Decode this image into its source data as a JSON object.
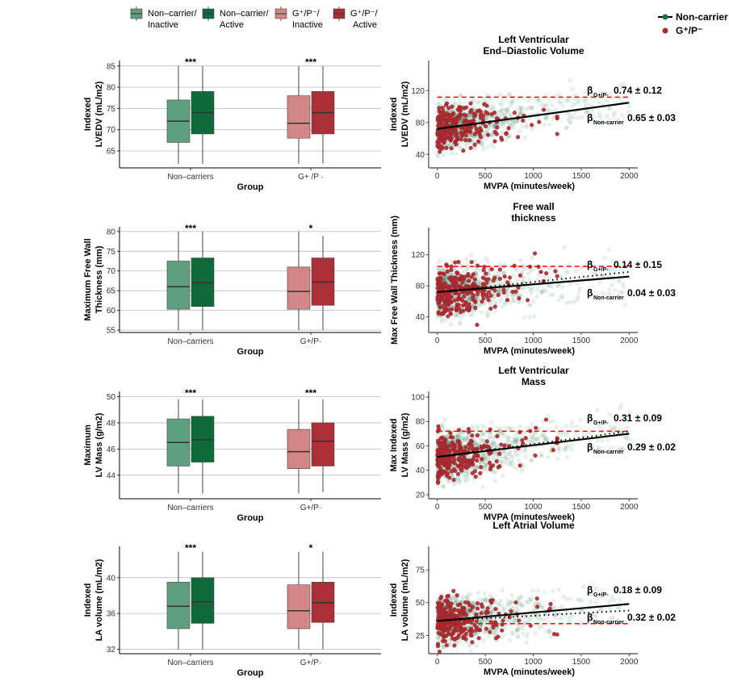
{
  "colors": {
    "nc_inactive": "#5f9e7e",
    "nc_active": "#0e6a3a",
    "g_inactive": "#d48585",
    "g_active": "#ac2f37",
    "scatter_green": "#1f6b42",
    "scatter_red": "#a7282f",
    "dashed": "#ff0000"
  },
  "legend_box": [
    {
      "label1": "Non–carrier/",
      "label2": "Inactive"
    },
    {
      "label1": "Non–carrier/",
      "label2": "Active"
    },
    {
      "label1": "G⁺/P⁻/",
      "label2": "Inactive"
    },
    {
      "label1": "G⁺/P⁻/",
      "label2": "Active"
    }
  ],
  "legend_scatter": [
    {
      "label": "Non-carrier"
    },
    {
      "label": "G⁺/P⁻"
    }
  ],
  "chart_data": [
    {
      "type": "box",
      "ylabel1": "Indexed",
      "ylabel2": "LVEDV (mL/m2)",
      "xlabel": "Group",
      "categories": [
        "Non–carriers",
        "G+ /P ·"
      ],
      "ylim": [
        61,
        86.3
      ],
      "yticks": [
        65,
        70,
        75,
        80,
        85
      ],
      "ytick_labels": [
        "65",
        "70",
        "75",
        "80",
        "85"
      ],
      "significance": [
        "***",
        "***"
      ],
      "boxes": [
        [
          62,
          67,
          72,
          77,
          85
        ],
        [
          62,
          69,
          74,
          79,
          85
        ],
        [
          62,
          68,
          71.5,
          78,
          85
        ],
        [
          62,
          69,
          74,
          79,
          85
        ]
      ]
    },
    {
      "type": "box",
      "ylabel1": "Maximum Free Wall",
      "ylabel2": "Thickness (mm)",
      "xlabel": "Group",
      "categories": [
        "Non–carriers",
        "G+/P·"
      ],
      "ylim": [
        54.4,
        81.2
      ],
      "yticks": [
        55,
        60,
        65,
        70,
        75,
        80
      ],
      "ytick_labels": [
        "55",
        "60",
        "65",
        "70",
        "75",
        "80"
      ],
      "significance": [
        "***",
        "*"
      ],
      "boxes": [
        [
          55,
          60.3,
          66,
          72.5,
          80
        ],
        [
          55,
          61,
          67,
          73.3,
          80
        ],
        [
          55,
          60.3,
          64.8,
          71,
          80
        ],
        [
          55,
          61.3,
          67.2,
          73.3,
          79
        ]
      ]
    },
    {
      "type": "box",
      "ylabel1": "Maximum",
      "ylabel2": "LV Mass (g/m2)",
      "xlabel": "Group",
      "categories": [
        "Non–carriers",
        "G+/P·"
      ],
      "ylim": [
        42.2,
        50.4
      ],
      "yticks": [
        44,
        46,
        48,
        50
      ],
      "ytick_labels": [
        "44",
        "46",
        "48",
        "50"
      ],
      "significance": [
        "***",
        "***"
      ],
      "boxes": [
        [
          42.6,
          44.7,
          46.5,
          48.3,
          49.8
        ],
        [
          42.6,
          45,
          46.7,
          48.5,
          49.8
        ],
        [
          42.6,
          44.5,
          45.8,
          47.5,
          49.8
        ],
        [
          42.7,
          44.7,
          46.6,
          48,
          49.8
        ]
      ]
    },
    {
      "type": "box",
      "ylabel1": "Indexed",
      "ylabel2": "LA volume (mL/m2)",
      "xlabel": "Group",
      "categories": [
        "Non–carriers",
        "G+/P·"
      ],
      "ylim": [
        31.5,
        43.5
      ],
      "yticks": [
        32,
        36,
        40
      ],
      "ytick_labels": [
        "32",
        "36",
        "40"
      ],
      "significance": [
        "***",
        "*"
      ],
      "boxes": [
        [
          32,
          34.3,
          36.8,
          39.5,
          42.9
        ],
        [
          32,
          34.9,
          37.3,
          40,
          42.9
        ],
        [
          32,
          34.3,
          36.3,
          39.2,
          42.9
        ],
        [
          32,
          35,
          37.2,
          39.5,
          42.9
        ]
      ]
    },
    {
      "type": "scatter",
      "title1": "Left Ventricular",
      "title2": "End–Diastolic Volume",
      "ylabel1": "Indexed",
      "ylabel2": "LVEDV (mL/m2)",
      "xlabel": "MVPA (minutes/week)",
      "xlim": [
        -90,
        2090
      ],
      "ylim": [
        23,
        158
      ],
      "xticks": [
        0,
        500,
        1000,
        1500,
        2000
      ],
      "xtick_labels": [
        "0",
        "500",
        "1000",
        "1500",
        "2000"
      ],
      "yticks": [
        40,
        80,
        120
      ],
      "ytick_labels": [
        "40",
        "80",
        "120"
      ],
      "nc_line": [
        72,
        105
      ],
      "g_line": [
        72,
        105
      ],
      "dashed_y": 112,
      "noise": 14,
      "beta_g": {
        "sym": "β",
        "sub": "G+/P-",
        "value": "0.74 ± 0.12"
      },
      "beta_nc": {
        "sym": "β",
        "sub": "Non-carrier",
        "value": "0.65 ± 0.03"
      }
    },
    {
      "type": "scatter",
      "title1": "Free wall",
      "title2": "thickness",
      "ylabel1": "Max Free Wall Thickness (mm)",
      "ylabel2": "",
      "xlabel": "MVPA (minutes/week)",
      "xlim": [
        -90,
        2090
      ],
      "ylim": [
        20,
        155
      ],
      "xticks": [
        0,
        500,
        1000,
        1500,
        2000
      ],
      "xtick_labels": [
        "0",
        "500",
        "1000",
        "1500",
        "2000"
      ],
      "yticks": [
        40,
        80,
        120
      ],
      "ytick_labels": [
        "40",
        "80",
        "120"
      ],
      "nc_line": [
        72,
        92
      ],
      "g_line": [
        72,
        98
      ],
      "dashed_y": 105,
      "noise": 16,
      "beta_g": {
        "sym": "β",
        "sub": "G+/P-",
        "value": "0.14 ± 0.15"
      },
      "beta_nc": {
        "sym": "β",
        "sub": "Non-carrier",
        "value": "0.04 ± 0.03"
      }
    },
    {
      "type": "scatter",
      "title1": "Left Ventricular",
      "title2": "Mass",
      "ylabel1": "Max Indexed",
      "ylabel2": "LV Mass (g/m2)",
      "xlabel": "MVPA (minutes/week)",
      "xlim": [
        -90,
        2090
      ],
      "ylim": [
        16.7,
        104.6
      ],
      "xticks": [
        0,
        500,
        1000,
        1500,
        2000
      ],
      "xtick_labels": [
        "0",
        "500",
        "1000",
        "1500",
        "2000"
      ],
      "yticks": [
        20,
        40,
        60,
        80,
        100
      ],
      "ytick_labels": [
        "20",
        "40",
        "60",
        "80",
        "100"
      ],
      "nc_line": [
        51,
        70
      ],
      "g_line": [
        51,
        72
      ],
      "dashed_y": 72,
      "noise": 10,
      "beta_g": {
        "sym": "β",
        "sub": "G+/P-",
        "value": "0.31 ± 0.09"
      },
      "beta_nc": {
        "sym": "β",
        "sub": "Non-carrier",
        "value": "0.29 ± 0.02"
      }
    },
    {
      "type": "scatter",
      "title1": "Left Atrial Volume",
      "title2": "",
      "ylabel1": "Indexed",
      "ylabel2": "LA volume (mL/m2)",
      "xlabel": "MVPA (minutes/week)",
      "xlim": [
        -90,
        2090
      ],
      "ylim": [
        11,
        93
      ],
      "xticks": [
        0,
        500,
        1000,
        1500,
        2000
      ],
      "xtick_labels": [
        "0",
        "500",
        "1000",
        "1500",
        "2000"
      ],
      "yticks": [
        25,
        50,
        75
      ],
      "ytick_labels": [
        "25",
        "50",
        "75"
      ],
      "nc_line": [
        36,
        49
      ],
      "g_line": [
        36,
        44
      ],
      "dashed_y": 34,
      "noise": 9,
      "beta_g": {
        "sym": "β",
        "sub": "G+/P-",
        "value": "0.18 ± 0.09"
      },
      "beta_nc": {
        "sym": "β",
        "sub": "Non-carrier",
        "value": "0.32 ± 0.02"
      }
    }
  ]
}
